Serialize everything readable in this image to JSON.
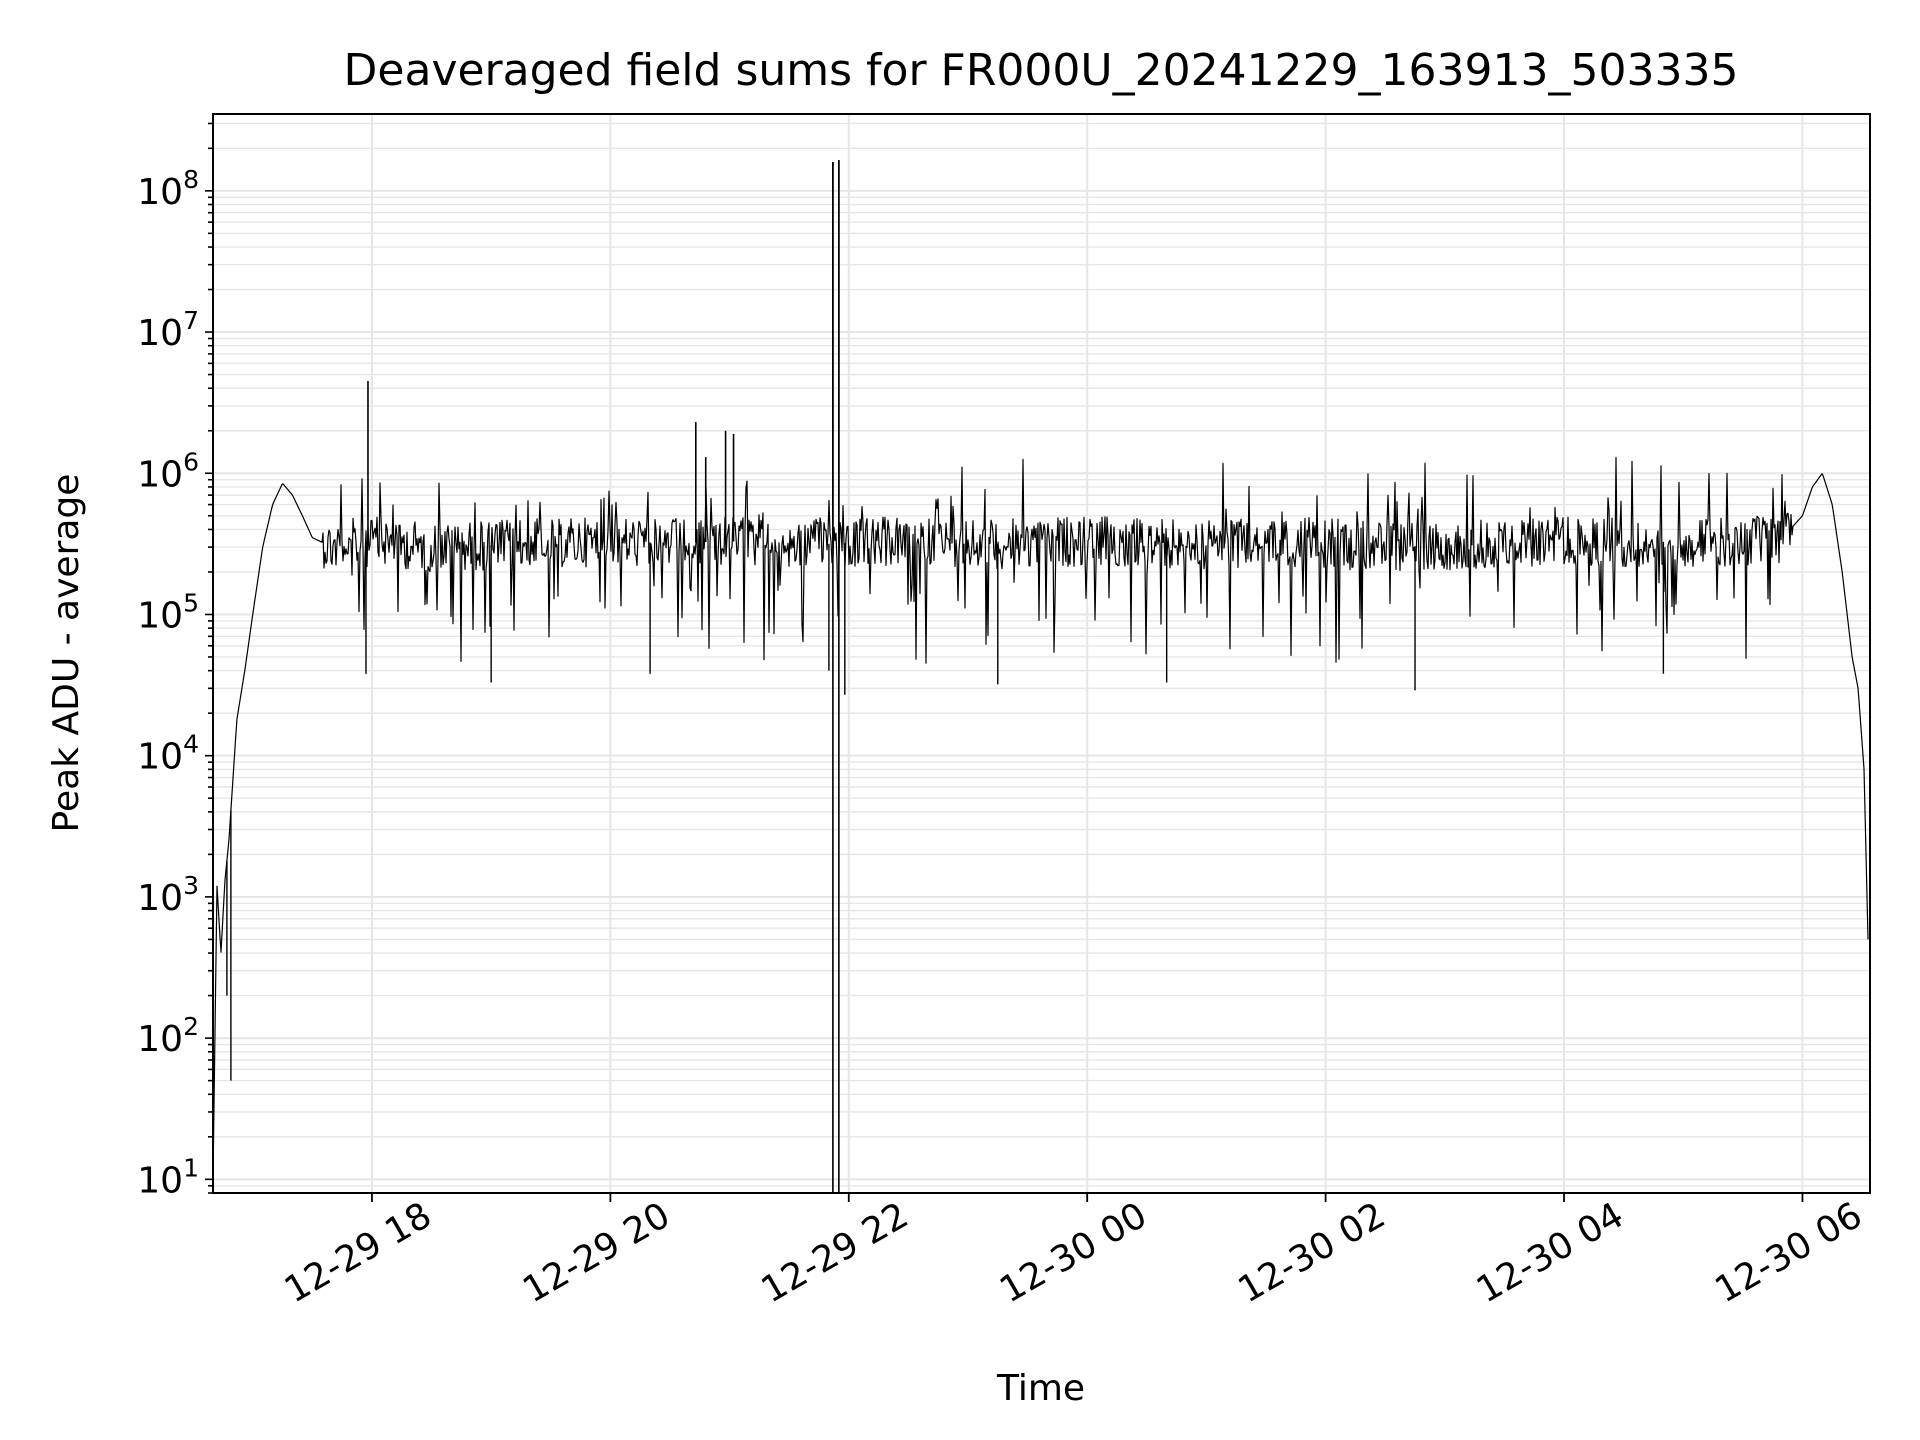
{
  "chart_data": {
    "type": "line",
    "title": "Deaveraged field sums for FR000U_20241229_163913_503335",
    "xlabel": "Time",
    "ylabel": "Peak ADU - average",
    "yscale": "log",
    "grid": true,
    "line_color": "#000000",
    "grid_color": "#e6e6e6",
    "x_range": [
      "2024-12-29 16:40",
      "2024-12-30 06:34"
    ],
    "y_range": [
      8,
      350000000
    ],
    "x_ticks": [
      {
        "x": "2024-12-29 18:00",
        "label": "12-29 18"
      },
      {
        "x": "2024-12-29 20:00",
        "label": "12-29 20"
      },
      {
        "x": "2024-12-29 22:00",
        "label": "12-29 22"
      },
      {
        "x": "2024-12-30 00:00",
        "label": "12-30 00"
      },
      {
        "x": "2024-12-30 02:00",
        "label": "12-30 02"
      },
      {
        "x": "2024-12-30 04:00",
        "label": "12-30 04"
      },
      {
        "x": "2024-12-30 06:00",
        "label": "12-30 06"
      }
    ],
    "y_ticks": [
      {
        "y": 10,
        "base": "10",
        "exp": "1"
      },
      {
        "y": 100,
        "base": "10",
        "exp": "2"
      },
      {
        "y": 1000,
        "base": "10",
        "exp": "3"
      },
      {
        "y": 10000,
        "base": "10",
        "exp": "4"
      },
      {
        "y": 100000,
        "base": "10",
        "exp": "5"
      },
      {
        "y": 1000000,
        "base": "10",
        "exp": "6"
      },
      {
        "y": 10000000,
        "base": "10",
        "exp": "7"
      },
      {
        "y": 100000000,
        "base": "10",
        "exp": "8"
      }
    ],
    "series": [
      {
        "x": [
          "2024-12-29 16:40",
          "2024-12-29 16:42",
          "2024-12-29 16:44",
          "2024-12-29 16:46",
          "2024-12-29 16:48",
          "2024-12-29 16:52",
          "2024-12-29 16:56",
          "2024-12-29 17:00",
          "2024-12-29 17:05",
          "2024-12-29 17:10",
          "2024-12-29 17:15",
          "2024-12-29 17:20",
          "2024-12-29 17:25",
          "2024-12-29 17:30",
          "2024-12-29 17:40",
          "2024-12-29 17:50",
          "2024-12-29 18:00",
          "2024-12-29 18:30",
          "2024-12-29 19:00",
          "2024-12-29 19:30",
          "2024-12-29 20:00",
          "2024-12-29 20:30",
          "2024-12-29 21:00",
          "2024-12-29 21:30",
          "2024-12-29 22:00",
          "2024-12-29 22:30",
          "2024-12-29 23:00",
          "2024-12-29 23:30",
          "2024-12-30 00:00",
          "2024-12-30 00:30",
          "2024-12-30 01:00",
          "2024-12-30 01:30",
          "2024-12-30 02:00",
          "2024-12-30 02:30",
          "2024-12-30 03:00",
          "2024-12-30 03:30",
          "2024-12-30 04:00",
          "2024-12-30 04:30",
          "2024-12-30 05:00",
          "2024-12-30 05:30",
          "2024-12-30 05:50",
          "2024-12-30 06:00",
          "2024-12-30 06:05",
          "2024-12-30 06:10",
          "2024-12-30 06:15",
          "2024-12-30 06:20",
          "2024-12-30 06:25",
          "2024-12-30 06:28",
          "2024-12-30 06:31",
          "2024-12-30 06:33"
        ],
        "y": [
          10,
          1200,
          400,
          1300,
          2500,
          18000,
          40000,
          100000,
          300000,
          600000,
          850000,
          700000,
          500000,
          350000,
          300000,
          320000,
          330000,
          300000,
          310000,
          320000,
          330000,
          320000,
          330000,
          310000,
          320000,
          330000,
          310000,
          320000,
          330000,
          320000,
          310000,
          330000,
          320000,
          300000,
          310000,
          320000,
          330000,
          320000,
          330000,
          320000,
          350000,
          500000,
          800000,
          1000000,
          600000,
          200000,
          50000,
          30000,
          8000,
          500
        ]
      }
    ],
    "spikes": [
      {
        "x": "2024-12-29 17:58",
        "y": 4500000
      },
      {
        "x": "2024-12-29 20:43",
        "y": 2300000
      },
      {
        "x": "2024-12-29 20:48",
        "y": 1300000
      },
      {
        "x": "2024-12-29 20:58",
        "y": 2000000
      },
      {
        "x": "2024-12-29 21:02",
        "y": 1900000
      },
      {
        "x": "2024-12-29 21:52",
        "y": 160000000
      },
      {
        "x": "2024-12-29 21:55",
        "y": 165000000
      }
    ],
    "dips": [
      {
        "x": "2024-12-29 16:49",
        "y": 50
      },
      {
        "x": "2024-12-29 16:47",
        "y": 200
      },
      {
        "x": "2024-12-29 17:57",
        "y": 38000
      },
      {
        "x": "2024-12-29 19:00",
        "y": 33000
      },
      {
        "x": "2024-12-29 20:20",
        "y": 38000
      },
      {
        "x": "2024-12-29 21:50",
        "y": 40000
      },
      {
        "x": "2024-12-29 21:58",
        "y": 27000
      },
      {
        "x": "2024-12-29 23:15",
        "y": 32000
      },
      {
        "x": "2024-12-30 00:40",
        "y": 33000
      },
      {
        "x": "2024-12-30 02:45",
        "y": 29000
      },
      {
        "x": "2024-12-30 04:50",
        "y": 38000
      }
    ]
  }
}
